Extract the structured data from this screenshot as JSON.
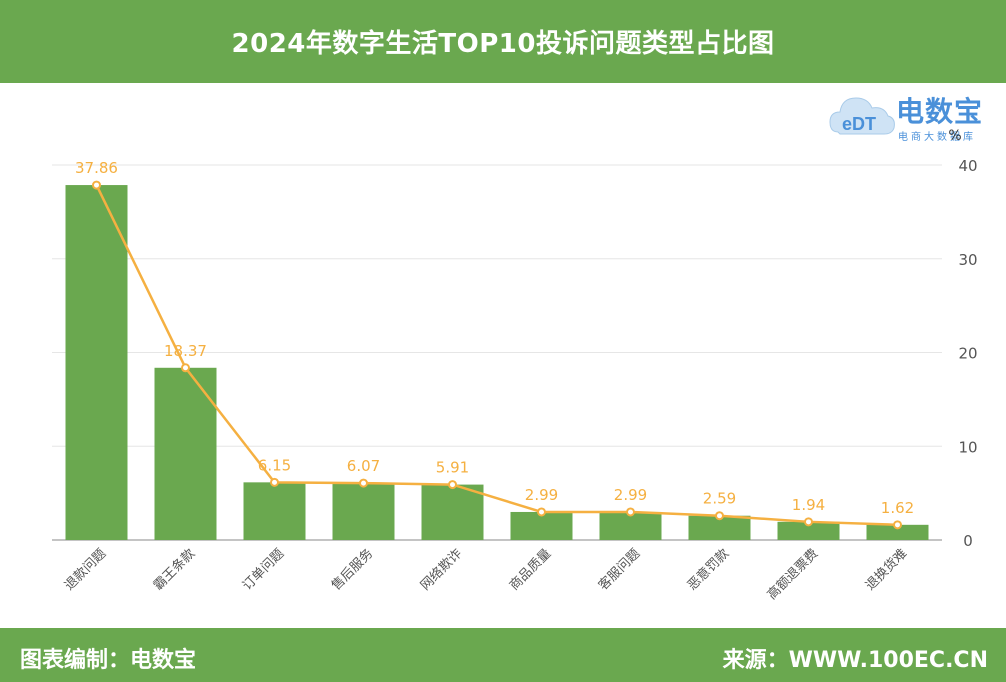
{
  "header": {
    "title": "2024年数字生活TOP10投诉问题类型占比图"
  },
  "footer": {
    "left": "图表编制：电数宝",
    "right": "来源：WWW.100EC.CN"
  },
  "logo": {
    "title": "电数宝",
    "subtitle": "电商大数据库",
    "mark": "eDT"
  },
  "colors": {
    "header_bg": "#6aa84f",
    "bar": "#6aa84f",
    "line": "#f5b041",
    "logo": "#4a90d9"
  },
  "chart_data": {
    "type": "bar",
    "title": "2024年数字生活TOP10投诉问题类型占比图",
    "categories": [
      "退款问题",
      "霸王条款",
      "订单问题",
      "售后服务",
      "网络欺诈",
      "商品质量",
      "客服问题",
      "恶意罚款",
      "高额退票费",
      "退换货难"
    ],
    "values": [
      37.86,
      18.37,
      6.15,
      6.07,
      5.91,
      2.99,
      2.99,
      2.59,
      1.94,
      1.62
    ],
    "overlay_line": true,
    "y_axis": {
      "side": "right",
      "unit": "%",
      "ylim": [
        0,
        40
      ],
      "ticks": [
        0,
        10,
        20,
        30,
        40
      ]
    },
    "grid": true,
    "xlabel": "",
    "ylabel": ""
  }
}
